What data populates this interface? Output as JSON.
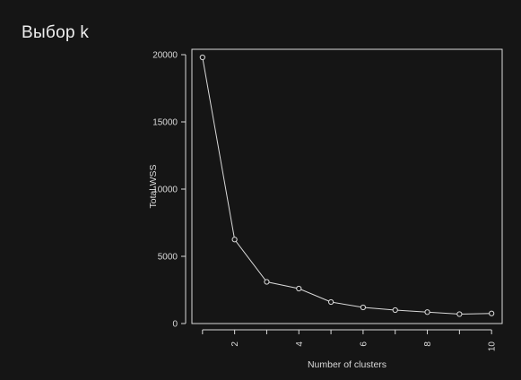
{
  "slide": {
    "title": "Выбор k"
  },
  "colors": {
    "background": "#151515",
    "foreground": "#d9d9d9"
  },
  "chart_data": {
    "type": "line",
    "title": "",
    "xlabel": "Number of clusters",
    "ylabel": "Total WSS",
    "x": [
      1,
      2,
      3,
      4,
      5,
      6,
      7,
      8,
      9,
      10
    ],
    "values": [
      19800,
      6250,
      3100,
      2600,
      1600,
      1200,
      1000,
      850,
      700,
      750
    ],
    "xlim": [
      0.67,
      10.33
    ],
    "ylim": [
      0,
      20400
    ],
    "xticks": [
      2,
      4,
      6,
      8,
      10
    ],
    "yticks": [
      0,
      5000,
      10000,
      15000,
      20000
    ],
    "markers": "open-circle",
    "grid": false,
    "legend": "none"
  }
}
